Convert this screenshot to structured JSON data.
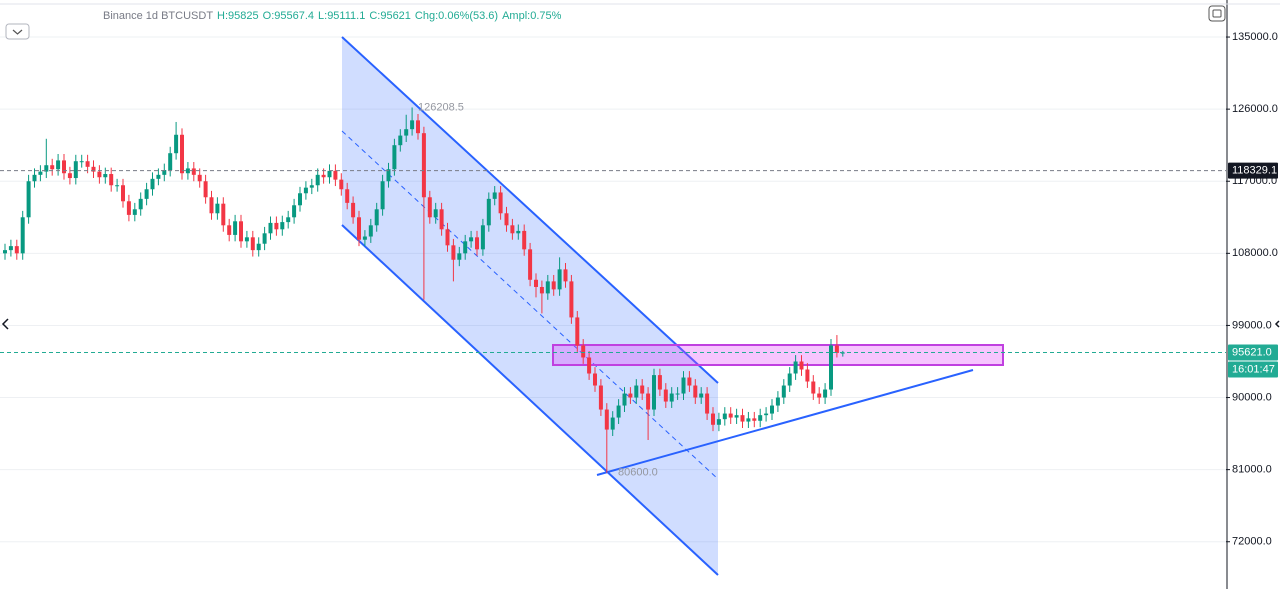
{
  "chart_data": {
    "type": "candlestick",
    "header": [
      "Binance 1d BTCUSDT",
      "H:95825",
      "O:95567.4",
      "L:95111.1",
      "C:95621",
      "Chg:0.06%(53.6)",
      "Ampl:0.75%"
    ],
    "ylim": [
      66100,
      139000
    ],
    "yticks": [
      {
        "value": 72000,
        "label": "72000.0"
      },
      {
        "value": 81000,
        "label": "81000.0"
      },
      {
        "value": 90000,
        "label": "90000.0"
      },
      {
        "value": 99000,
        "label": "99000.0"
      },
      {
        "value": 108000,
        "label": "108000.0"
      },
      {
        "value": 117000,
        "label": "117000.0"
      },
      {
        "value": 126000,
        "label": "126000.0"
      },
      {
        "value": 135000,
        "label": "135000.0"
      }
    ],
    "grid": true,
    "up_color": "#089981",
    "down_color": "#f23645",
    "open": [
      108000,
      108400,
      108900,
      108000,
      112500,
      117000,
      117800,
      118200,
      119000,
      118500,
      119600,
      118000,
      117400,
      119500,
      119500,
      118800,
      118200,
      117500,
      117900,
      116500,
      116500,
      114500,
      112800,
      113500,
      114800,
      116000,
      117300,
      117800,
      118400,
      120500,
      122800,
      118000,
      118600,
      117800,
      117000,
      115000,
      113000,
      114200,
      111500,
      110300,
      112000,
      109500,
      110000,
      108400,
      109200,
      110500,
      111800,
      111000,
      111900,
      112500,
      114000,
      115500,
      116200,
      116500,
      117800,
      117500,
      118300,
      117200,
      116000,
      114300,
      112500,
      109700,
      110100,
      111500,
      113500,
      117000,
      118500,
      121500,
      122700,
      123500,
      124600,
      123000,
      115000,
      112500,
      113500,
      111000,
      109000,
      107200,
      108000,
      109500,
      110000,
      108500,
      111500,
      114800,
      115600,
      113000,
      111500,
      110500,
      110800,
      108500,
      104700,
      103800,
      103000,
      104500,
      103500,
      106000,
      104500,
      100000,
      96500,
      95000,
      93000,
      91500,
      88500,
      86000,
      87500,
      89000,
      90500,
      90000,
      91500,
      90500,
      88500,
      92800,
      91000,
      89500,
      90500,
      90500,
      92500,
      91500,
      90000,
      90500,
      88000,
      86600,
      87300,
      88000,
      87500,
      87800,
      87000,
      87400,
      87100,
      87800,
      88000,
      89000,
      90000,
      91500,
      93000,
      94500,
      93500,
      92000,
      90500,
      90000,
      91000,
      96500,
      95567.4
    ],
    "high": [
      109200,
      109700,
      109700,
      113300,
      117800,
      118600,
      119000,
      122300,
      119800,
      120400,
      120400,
      118800,
      120300,
      120300,
      120300,
      119600,
      119000,
      118700,
      118700,
      117300,
      117300,
      115300,
      114300,
      115600,
      116800,
      118100,
      118600,
      119200,
      121300,
      124400,
      123600,
      119400,
      119400,
      118600,
      117800,
      115800,
      115000,
      115000,
      112300,
      112800,
      112800,
      110800,
      110800,
      110000,
      111300,
      112600,
      112600,
      112700,
      113300,
      114800,
      116300,
      117000,
      117300,
      118600,
      118600,
      119100,
      119100,
      118000,
      116800,
      115100,
      113300,
      110900,
      112300,
      114300,
      117800,
      119300,
      122300,
      123500,
      125300,
      126208.5,
      125400,
      123800,
      115800,
      114300,
      114300,
      111800,
      109800,
      108800,
      110300,
      110800,
      110800,
      112300,
      115600,
      116400,
      116400,
      113800,
      112300,
      111600,
      111600,
      109300,
      105500,
      104600,
      105300,
      105300,
      107500,
      106800,
      105300,
      100800,
      97300,
      95800,
      93800,
      92300,
      89300,
      88300,
      89800,
      91300,
      91300,
      92300,
      92300,
      91300,
      93600,
      93600,
      91800,
      91300,
      91300,
      93300,
      93300,
      92300,
      91300,
      91300,
      88800,
      88100,
      88800,
      88800,
      88600,
      88600,
      88200,
      88200,
      88600,
      88800,
      89800,
      90800,
      92300,
      93800,
      95300,
      95300,
      94300,
      92800,
      91300,
      91800,
      97300,
      97800,
      95825
    ],
    "low": [
      107200,
      107600,
      107200,
      107200,
      111700,
      116200,
      117000,
      117400,
      117700,
      117700,
      117200,
      116600,
      116600,
      118700,
      118000,
      117400,
      116700,
      116700,
      115700,
      115700,
      113700,
      112000,
      112000,
      112700,
      114000,
      115200,
      116500,
      117000,
      117600,
      119700,
      117200,
      117200,
      117000,
      116200,
      114200,
      112200,
      112200,
      110700,
      109500,
      109500,
      108700,
      108700,
      107600,
      107600,
      108400,
      109700,
      110200,
      110200,
      111100,
      111700,
      113200,
      114700,
      115400,
      115700,
      116700,
      116700,
      116400,
      115200,
      113500,
      111700,
      108900,
      108900,
      109300,
      110700,
      112700,
      116200,
      117700,
      120700,
      121900,
      122700,
      122200,
      102200,
      111700,
      111700,
      110200,
      108200,
      104500,
      106400,
      107200,
      108700,
      107700,
      107700,
      110700,
      114000,
      112200,
      110700,
      109700,
      109700,
      107700,
      103900,
      102500,
      100500,
      102200,
      102700,
      102700,
      103700,
      99200,
      95700,
      94200,
      92200,
      90700,
      87700,
      80600,
      85200,
      86700,
      88200,
      89200,
      89200,
      89700,
      84700,
      87700,
      90200,
      88700,
      88700,
      89700,
      89700,
      90700,
      89200,
      89200,
      87200,
      85800,
      85800,
      86500,
      86700,
      86700,
      86200,
      86200,
      86300,
      86300,
      87000,
      87200,
      88200,
      89200,
      90700,
      92200,
      92700,
      91200,
      89700,
      89200,
      89200,
      90200,
      95000,
      95111.1
    ],
    "close": [
      108400,
      108900,
      108000,
      112500,
      117000,
      117800,
      118200,
      119000,
      118500,
      119600,
      118000,
      117400,
      119500,
      119500,
      118800,
      118200,
      117500,
      117900,
      116500,
      116500,
      114500,
      112800,
      113500,
      114800,
      116000,
      117300,
      117800,
      118400,
      120500,
      122800,
      118000,
      118600,
      117800,
      117000,
      115000,
      113000,
      114200,
      111500,
      110300,
      112000,
      109500,
      110000,
      108400,
      109200,
      110500,
      111800,
      111000,
      111900,
      112500,
      114000,
      115500,
      116200,
      116500,
      117800,
      117500,
      118300,
      117200,
      116000,
      114300,
      112500,
      109700,
      110100,
      111500,
      113500,
      117000,
      118500,
      121500,
      122700,
      123500,
      124600,
      123000,
      115000,
      112500,
      113500,
      111000,
      109000,
      107200,
      108000,
      109500,
      110000,
      108500,
      111500,
      114800,
      115600,
      113000,
      111500,
      110500,
      110800,
      108500,
      104700,
      103800,
      103000,
      104500,
      103500,
      106000,
      104500,
      100000,
      96500,
      95000,
      93000,
      91500,
      88500,
      86000,
      87500,
      89000,
      90500,
      90000,
      91500,
      90500,
      88500,
      92800,
      91000,
      89500,
      90500,
      90500,
      92500,
      91500,
      90000,
      90500,
      88000,
      86600,
      87300,
      88000,
      87500,
      87800,
      87000,
      87400,
      87100,
      87800,
      88000,
      89000,
      90000,
      91500,
      93000,
      94500,
      93500,
      92000,
      90500,
      90000,
      91000,
      96500,
      95567.4,
      95621
    ],
    "annotations": [
      {
        "value": 126208.5,
        "label": "126208.5"
      },
      {
        "value": 80600,
        "label": "80600.0"
      }
    ],
    "price_lines": [
      {
        "value": 118329.1,
        "label": "118329.1",
        "color": "#131722"
      },
      {
        "value": 95621,
        "label": "95621.0",
        "color": "#22ab94"
      }
    ],
    "countdown": "16:01:47"
  }
}
